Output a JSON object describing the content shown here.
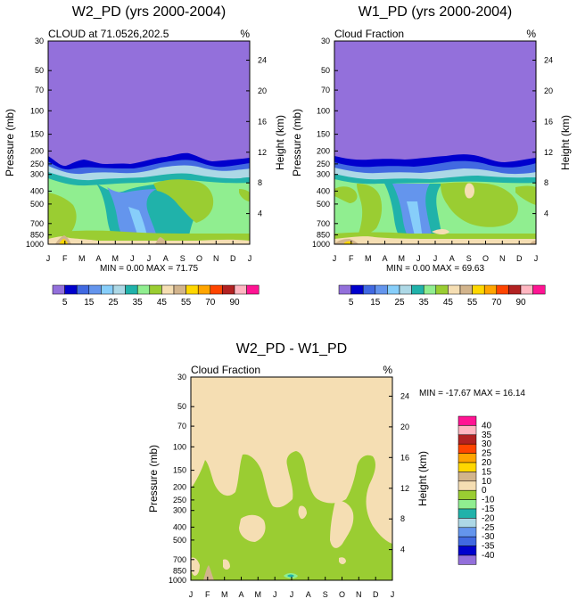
{
  "chart_data": [
    {
      "type": "heatmap",
      "title": "W2_PD (yrs 2000-2004)",
      "subtitle_left": "CLOUD at 71.0526,202.5",
      "units": "%",
      "xlabel": "",
      "ylabel": "Pressure (mb)",
      "y2label": "Height (km)",
      "x_ticks": [
        "J",
        "F",
        "M",
        "A",
        "M",
        "J",
        "J",
        "A",
        "S",
        "O",
        "N",
        "D",
        "J"
      ],
      "y_ticks": [
        "30",
        "50",
        "70",
        "100",
        "150",
        "200",
        "250",
        "300",
        "400",
        "500",
        "700",
        "850",
        "1000"
      ],
      "y_values": [
        30,
        50,
        70,
        100,
        150,
        200,
        250,
        300,
        400,
        500,
        700,
        850,
        1000
      ],
      "y2_ticks": [
        "24",
        "20",
        "16",
        "12",
        "8",
        "4"
      ],
      "y2_values": [
        24,
        20,
        16,
        12,
        8,
        4
      ],
      "ylim": [
        30,
        1000
      ],
      "stats": "MIN =   0.00 MAX =  71.75",
      "min": 0.0,
      "max": 71.75,
      "colorbar": {
        "orientation": "horizontal",
        "labels": [
          "5",
          "15",
          "25",
          "35",
          "45",
          "55",
          "70",
          "90"
        ],
        "levels": [
          5,
          10,
          15,
          20,
          25,
          30,
          35,
          40,
          45,
          50,
          55,
          60,
          70,
          80,
          90
        ],
        "colors": [
          "#9370db",
          "#0000cd",
          "#4169e1",
          "#6495ed",
          "#87cefa",
          "#add8e6",
          "#20b2aa",
          "#90ee90",
          "#9acd32",
          "#f5deb3",
          "#d2b48c",
          "#ffd700",
          "#ffa500",
          "#ff4500",
          "#b22222",
          "#ffb6c1",
          "#ff1493"
        ]
      }
    },
    {
      "type": "heatmap",
      "title": "W1_PD (yrs 2000-2004)",
      "subtitle_left": "Cloud Fraction",
      "units": "%",
      "xlabel": "",
      "ylabel": "Pressure (mb)",
      "y2label": "Height (km)",
      "x_ticks": [
        "J",
        "F",
        "M",
        "A",
        "M",
        "J",
        "J",
        "A",
        "S",
        "O",
        "N",
        "D",
        "J"
      ],
      "y_ticks": [
        "30",
        "50",
        "70",
        "100",
        "150",
        "200",
        "250",
        "300",
        "400",
        "500",
        "700",
        "850",
        "1000"
      ],
      "y_values": [
        30,
        50,
        70,
        100,
        150,
        200,
        250,
        300,
        400,
        500,
        700,
        850,
        1000
      ],
      "y2_ticks": [
        "24",
        "20",
        "16",
        "12",
        "8",
        "4"
      ],
      "y2_values": [
        24,
        20,
        16,
        12,
        8,
        4
      ],
      "ylim": [
        30,
        1000
      ],
      "stats": "MIN =   0.00 MAX =  69.63",
      "min": 0.0,
      "max": 69.63,
      "colorbar": {
        "orientation": "horizontal",
        "labels": [
          "5",
          "15",
          "25",
          "35",
          "45",
          "55",
          "70",
          "90"
        ],
        "levels": [
          5,
          10,
          15,
          20,
          25,
          30,
          35,
          40,
          45,
          50,
          55,
          60,
          70,
          80,
          90
        ],
        "colors": [
          "#9370db",
          "#0000cd",
          "#4169e1",
          "#6495ed",
          "#87cefa",
          "#add8e6",
          "#20b2aa",
          "#90ee90",
          "#9acd32",
          "#f5deb3",
          "#d2b48c",
          "#ffd700",
          "#ffa500",
          "#ff4500",
          "#b22222",
          "#ffb6c1",
          "#ff1493"
        ]
      }
    },
    {
      "type": "heatmap",
      "title": "W2_PD - W1_PD",
      "subtitle_left": "Cloud Fraction",
      "units": "%",
      "xlabel": "",
      "ylabel": "Pressure (mb)",
      "y2label": "Height (km)",
      "x_ticks": [
        "J",
        "F",
        "M",
        "A",
        "M",
        "J",
        "J",
        "A",
        "S",
        "O",
        "N",
        "D",
        "J"
      ],
      "y_ticks": [
        "30",
        "50",
        "70",
        "100",
        "150",
        "200",
        "250",
        "300",
        "400",
        "500",
        "700",
        "850",
        "1000"
      ],
      "y_values": [
        30,
        50,
        70,
        100,
        150,
        200,
        250,
        300,
        400,
        500,
        700,
        850,
        1000
      ],
      "y2_ticks": [
        "24",
        "20",
        "16",
        "12",
        "8",
        "4"
      ],
      "y2_values": [
        24,
        20,
        16,
        12,
        8,
        4
      ],
      "ylim": [
        30,
        1000
      ],
      "stats": "MIN = -17.67 MAX =  16.14",
      "min": -17.67,
      "max": 16.14,
      "colorbar": {
        "orientation": "vertical",
        "labels": [
          "40",
          "35",
          "30",
          "25",
          "20",
          "15",
          "10",
          "0",
          "-10",
          "-15",
          "-20",
          "-25",
          "-30",
          "-35",
          "-40"
        ],
        "colors": [
          "#ff1493",
          "#ffb6c1",
          "#b22222",
          "#ff4500",
          "#ffa500",
          "#ffd700",
          "#d2b48c",
          "#f5deb3",
          "#9acd32",
          "#90ee90",
          "#20b2aa",
          "#add8e6",
          "#6495ed",
          "#4169e1",
          "#0000cd",
          "#9370db"
        ]
      }
    }
  ]
}
